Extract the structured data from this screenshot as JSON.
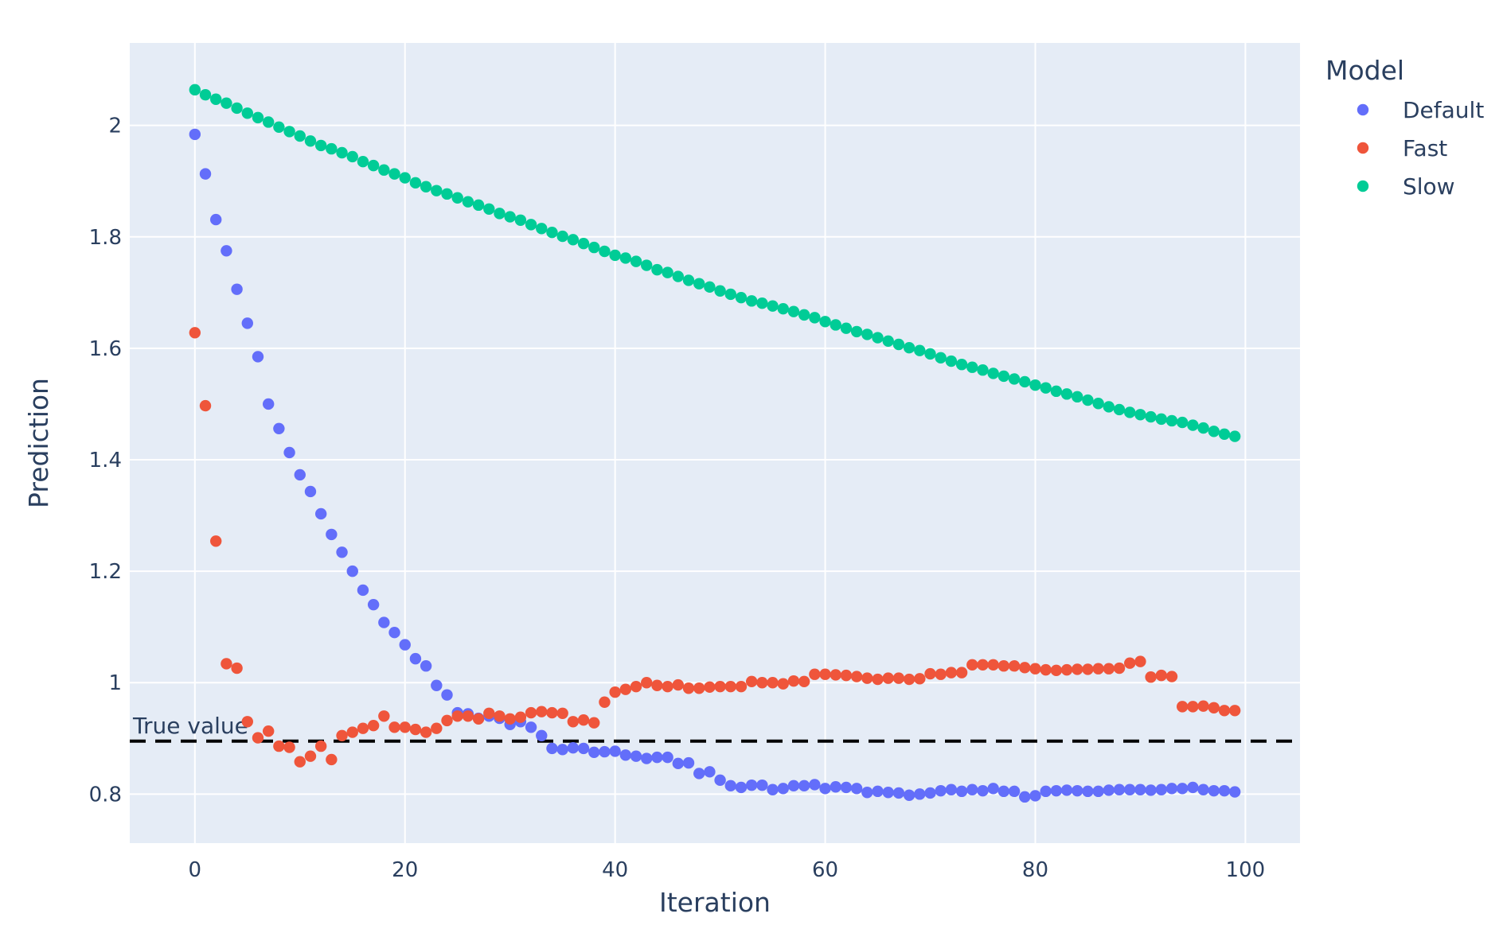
{
  "chart_data": {
    "type": "scatter",
    "xlabel": "Iteration",
    "ylabel": "Prediction",
    "xlim": [
      -6.2,
      105.2
    ],
    "ylim": [
      0.712,
      2.148
    ],
    "x_ticks": [
      0,
      20,
      40,
      60,
      80,
      100
    ],
    "x_tick_labels": [
      "0",
      "20",
      "40",
      "60",
      "80",
      "100"
    ],
    "y_ticks": [
      0.8,
      1.0,
      1.2,
      1.4,
      1.6,
      1.8,
      2.0
    ],
    "y_tick_labels": [
      "0.8",
      "1",
      "1.2",
      "1.4",
      "1.6",
      "1.8",
      "2"
    ],
    "grid": true,
    "legend": {
      "title": "Model",
      "placement": "right"
    },
    "colors": {
      "plot_bg": "#e5ecf6",
      "grid": "#ffffff",
      "text": "#2a3f5f"
    },
    "reference_line": {
      "y": 0.895,
      "label": "True value",
      "style": "dashed",
      "color": "#000000"
    },
    "series": [
      {
        "name": "Default",
        "color": "#636efa",
        "x": [
          0,
          1,
          2,
          3,
          4,
          5,
          6,
          7,
          8,
          9,
          10,
          11,
          12,
          13,
          14,
          15,
          16,
          17,
          18,
          19,
          20,
          21,
          22,
          23,
          24,
          25,
          26,
          27,
          28,
          29,
          30,
          31,
          32,
          33,
          34,
          35,
          36,
          37,
          38,
          39,
          40,
          41,
          42,
          43,
          44,
          45,
          46,
          47,
          48,
          49,
          50,
          51,
          52,
          53,
          54,
          55,
          56,
          57,
          58,
          59,
          60,
          61,
          62,
          63,
          64,
          65,
          66,
          67,
          68,
          69,
          70,
          71,
          72,
          73,
          74,
          75,
          76,
          77,
          78,
          79,
          80,
          81,
          82,
          83,
          84,
          85,
          86,
          87,
          88,
          89,
          90,
          91,
          92,
          93,
          94,
          95,
          96,
          97,
          98,
          99
        ],
        "values": [
          1.984,
          1.913,
          1.831,
          1.775,
          1.706,
          1.645,
          1.585,
          1.5,
          1.456,
          1.413,
          1.373,
          1.343,
          1.303,
          1.266,
          1.234,
          1.2,
          1.166,
          1.14,
          1.108,
          1.09,
          1.068,
          1.043,
          1.03,
          0.995,
          0.978,
          0.946,
          0.944,
          0.936,
          0.94,
          0.936,
          0.925,
          0.93,
          0.92,
          0.905,
          0.882,
          0.88,
          0.883,
          0.882,
          0.875,
          0.876,
          0.877,
          0.87,
          0.868,
          0.864,
          0.866,
          0.866,
          0.855,
          0.856,
          0.837,
          0.84,
          0.825,
          0.815,
          0.812,
          0.816,
          0.816,
          0.808,
          0.81,
          0.815,
          0.815,
          0.817,
          0.81,
          0.813,
          0.812,
          0.81,
          0.803,
          0.805,
          0.803,
          0.802,
          0.798,
          0.8,
          0.802,
          0.806,
          0.808,
          0.805,
          0.808,
          0.806,
          0.81,
          0.805,
          0.805,
          0.795,
          0.797,
          0.805,
          0.806,
          0.807,
          0.806,
          0.805,
          0.805,
          0.807,
          0.808,
          0.808,
          0.808,
          0.807,
          0.808,
          0.81,
          0.81,
          0.812,
          0.808,
          0.806,
          0.806,
          0.804
        ]
      },
      {
        "name": "Fast",
        "color": "#ef553b",
        "x": [
          0,
          1,
          2,
          3,
          4,
          5,
          6,
          7,
          8,
          9,
          10,
          11,
          12,
          13,
          14,
          15,
          16,
          17,
          18,
          19,
          20,
          21,
          22,
          23,
          24,
          25,
          26,
          27,
          28,
          29,
          30,
          31,
          32,
          33,
          34,
          35,
          36,
          37,
          38,
          39,
          40,
          41,
          42,
          43,
          44,
          45,
          46,
          47,
          48,
          49,
          50,
          51,
          52,
          53,
          54,
          55,
          56,
          57,
          58,
          59,
          60,
          61,
          62,
          63,
          64,
          65,
          66,
          67,
          68,
          69,
          70,
          71,
          72,
          73,
          74,
          75,
          76,
          77,
          78,
          79,
          80,
          81,
          82,
          83,
          84,
          85,
          86,
          87,
          88,
          89,
          90,
          91,
          92,
          93,
          94,
          95,
          96,
          97,
          98,
          99
        ],
        "values": [
          1.628,
          1.497,
          1.254,
          1.034,
          1.026,
          0.93,
          0.901,
          0.913,
          0.886,
          0.884,
          0.858,
          0.868,
          0.886,
          0.862,
          0.905,
          0.911,
          0.918,
          0.923,
          0.94,
          0.92,
          0.92,
          0.916,
          0.911,
          0.918,
          0.932,
          0.94,
          0.94,
          0.935,
          0.945,
          0.94,
          0.935,
          0.938,
          0.946,
          0.948,
          0.946,
          0.945,
          0.93,
          0.933,
          0.928,
          0.965,
          0.983,
          0.988,
          0.993,
          1.0,
          0.995,
          0.993,
          0.996,
          0.99,
          0.99,
          0.992,
          0.993,
          0.993,
          0.993,
          1.002,
          1.0,
          1.0,
          0.998,
          1.003,
          1.002,
          1.015,
          1.015,
          1.014,
          1.013,
          1.011,
          1.008,
          1.006,
          1.008,
          1.008,
          1.006,
          1.007,
          1.016,
          1.015,
          1.018,
          1.018,
          1.032,
          1.032,
          1.032,
          1.03,
          1.03,
          1.027,
          1.025,
          1.023,
          1.022,
          1.023,
          1.024,
          1.024,
          1.025,
          1.025,
          1.026,
          1.035,
          1.038,
          1.01,
          1.013,
          1.011,
          0.957,
          0.957,
          0.958,
          0.955,
          0.95,
          0.95
        ]
      },
      {
        "name": "Slow",
        "color": "#00cc96",
        "x": [
          0,
          1,
          2,
          3,
          4,
          5,
          6,
          7,
          8,
          9,
          10,
          11,
          12,
          13,
          14,
          15,
          16,
          17,
          18,
          19,
          20,
          21,
          22,
          23,
          24,
          25,
          26,
          27,
          28,
          29,
          30,
          31,
          32,
          33,
          34,
          35,
          36,
          37,
          38,
          39,
          40,
          41,
          42,
          43,
          44,
          45,
          46,
          47,
          48,
          49,
          50,
          51,
          52,
          53,
          54,
          55,
          56,
          57,
          58,
          59,
          60,
          61,
          62,
          63,
          64,
          65,
          66,
          67,
          68,
          69,
          70,
          71,
          72,
          73,
          74,
          75,
          76,
          77,
          78,
          79,
          80,
          81,
          82,
          83,
          84,
          85,
          86,
          87,
          88,
          89,
          90,
          91,
          92,
          93,
          94,
          95,
          96,
          97,
          98,
          99
        ],
        "values": [
          2.064,
          2.055,
          2.047,
          2.04,
          2.031,
          2.022,
          2.014,
          2.006,
          1.997,
          1.989,
          1.981,
          1.972,
          1.964,
          1.958,
          1.951,
          1.944,
          1.935,
          1.928,
          1.92,
          1.913,
          1.906,
          1.897,
          1.89,
          1.883,
          1.877,
          1.87,
          1.863,
          1.857,
          1.85,
          1.842,
          1.836,
          1.83,
          1.822,
          1.815,
          1.808,
          1.801,
          1.795,
          1.788,
          1.781,
          1.774,
          1.767,
          1.762,
          1.756,
          1.749,
          1.741,
          1.736,
          1.729,
          1.722,
          1.716,
          1.71,
          1.703,
          1.697,
          1.691,
          1.685,
          1.681,
          1.676,
          1.671,
          1.666,
          1.66,
          1.655,
          1.648,
          1.642,
          1.636,
          1.63,
          1.625,
          1.619,
          1.613,
          1.607,
          1.601,
          1.596,
          1.59,
          1.583,
          1.577,
          1.571,
          1.566,
          1.561,
          1.555,
          1.55,
          1.545,
          1.54,
          1.534,
          1.529,
          1.523,
          1.518,
          1.513,
          1.507,
          1.501,
          1.495,
          1.49,
          1.485,
          1.481,
          1.477,
          1.473,
          1.47,
          1.467,
          1.462,
          1.457,
          1.451,
          1.446,
          1.442
        ]
      }
    ]
  }
}
